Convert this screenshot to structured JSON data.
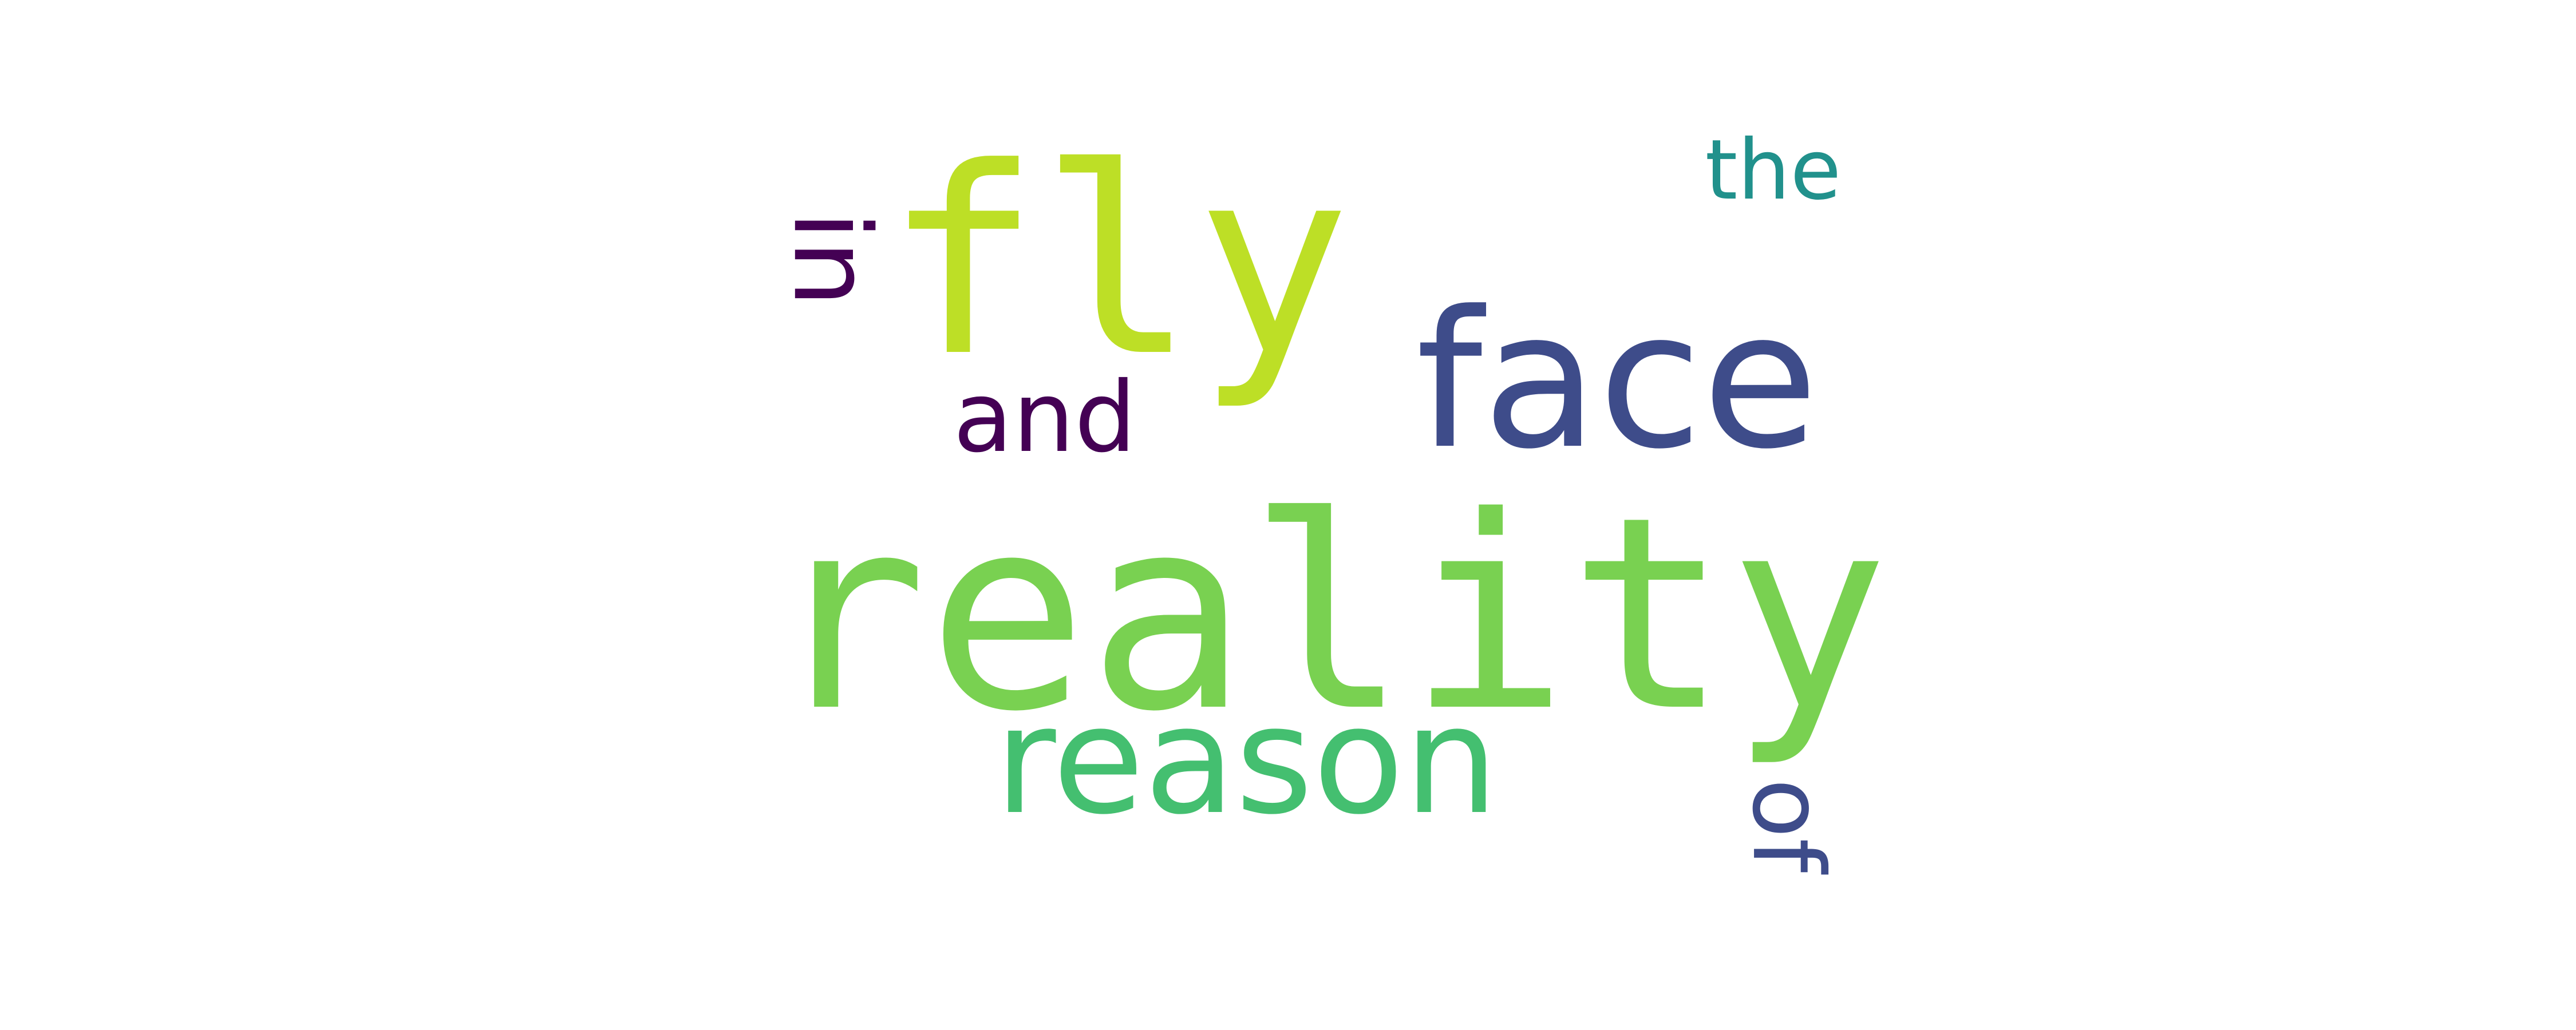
{
  "words": [
    {
      "id": "reality",
      "text": "reality",
      "color": "#79d151"
    },
    {
      "id": "reason",
      "text": "reason",
      "color": "#44bf70"
    },
    {
      "id": "fly",
      "text": "fly",
      "color": "#bddf26"
    },
    {
      "id": "face",
      "text": "face",
      "color": "#3e4c8a"
    },
    {
      "id": "the",
      "text": "the",
      "color": "#21918c"
    },
    {
      "id": "and",
      "text": "and",
      "color": "#440154"
    },
    {
      "id": "in",
      "text": "in",
      "color": "#440154",
      "orientation": "vertical"
    },
    {
      "id": "of",
      "text": "of",
      "color": "#3e4c8a",
      "orientation": "vertical"
    }
  ]
}
